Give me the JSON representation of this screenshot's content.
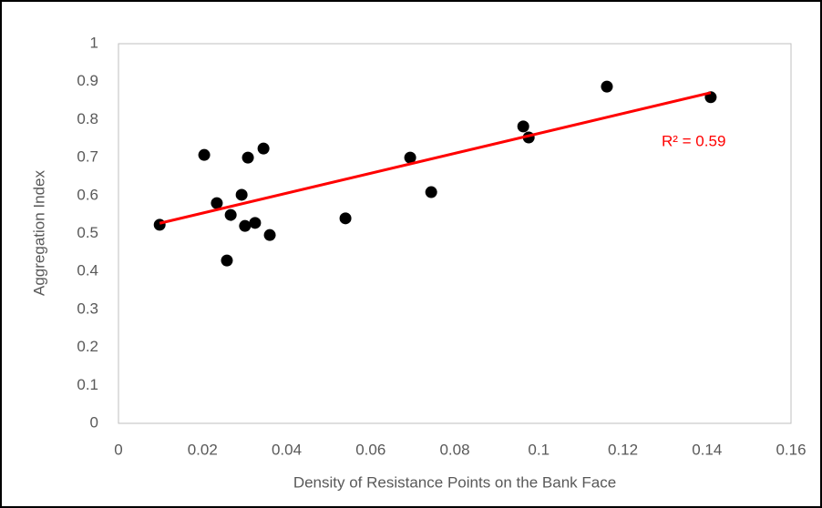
{
  "chart_data": {
    "type": "scatter",
    "x_label": "Density of Resistance Points on the Bank Face",
    "y_label": "Aggregation Index",
    "series": [
      {
        "name": "Aggregation Index",
        "color": "#000000",
        "x": [
          0.0098,
          0.0204,
          0.0234,
          0.0258,
          0.0267,
          0.0293,
          0.0301,
          0.0308,
          0.0325,
          0.0345,
          0.036,
          0.054,
          0.0694,
          0.0744,
          0.0963,
          0.0976,
          0.1162,
          0.1409
        ],
        "values": [
          0.523,
          0.707,
          0.58,
          0.429,
          0.549,
          0.602,
          0.52,
          0.7,
          0.528,
          0.724,
          0.496,
          0.54,
          0.7,
          0.609,
          0.782,
          0.753,
          0.887,
          0.859
        ]
      }
    ],
    "trendline": {
      "x": [
        0.0098,
        0.1409
      ],
      "y": [
        0.527,
        0.871
      ],
      "color": "#ff0000",
      "label": "R² = 0.59"
    },
    "xlim": [
      0,
      0.16
    ],
    "xticks": [
      0,
      0.02,
      0.04,
      0.06,
      0.08,
      0.1,
      0.12,
      0.14,
      0.16
    ],
    "ylim": [
      0,
      1
    ],
    "yticks": [
      0,
      0.1,
      0.2,
      0.3,
      0.4,
      0.5,
      0.6,
      0.7,
      0.8,
      0.9,
      1
    ],
    "grid": false
  }
}
